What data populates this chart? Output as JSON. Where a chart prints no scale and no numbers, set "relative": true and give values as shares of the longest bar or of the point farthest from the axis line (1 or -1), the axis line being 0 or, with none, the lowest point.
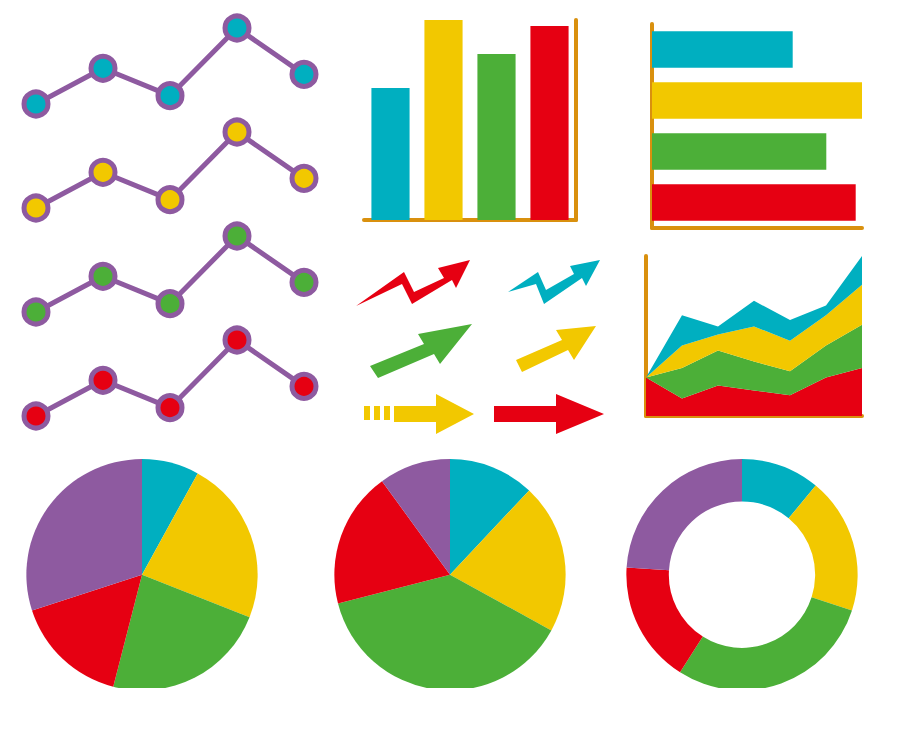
{
  "chart_data": [
    {
      "type": "line",
      "relative": true,
      "categories": [
        null,
        null,
        null,
        null,
        null
      ],
      "marker": "circle",
      "series": [
        {
          "color": "#8e5aa0",
          "colors": [
            "#00afc0",
            "#00afc0",
            "#00afc0",
            "#00afc0",
            "#00afc0"
          ],
          "values": [
            0,
            0.47,
            0.11,
            1,
            0.39
          ]
        }
      ]
    },
    {
      "type": "line",
      "relative": true,
      "categories": [
        null,
        null,
        null,
        null,
        null
      ],
      "marker": "circle",
      "series": [
        {
          "color": "#8e5aa0",
          "colors": [
            "#f2c800",
            "#f2c800",
            "#f2c800",
            "#f2c800",
            "#f2c800"
          ],
          "values": [
            0,
            0.47,
            0.11,
            1,
            0.39
          ]
        }
      ]
    },
    {
      "type": "line",
      "relative": true,
      "categories": [
        null,
        null,
        null,
        null,
        null
      ],
      "marker": "circle",
      "series": [
        {
          "color": "#8e5aa0",
          "colors": [
            "#4caf38",
            "#4caf38",
            "#4caf38",
            "#4caf38",
            "#4caf38"
          ],
          "values": [
            0,
            0.47,
            0.11,
            1,
            0.39
          ]
        }
      ]
    },
    {
      "type": "line",
      "relative": true,
      "categories": [
        null,
        null,
        null,
        null,
        null
      ],
      "marker": "circle",
      "series": [
        {
          "color": "#8e5aa0",
          "colors": [
            "#e60012",
            "#e60012",
            "#e60012",
            "#e60012",
            "#e60012"
          ],
          "values": [
            0,
            0.47,
            0.11,
            1,
            0.39
          ]
        }
      ]
    },
    {
      "type": "bar",
      "relative": true,
      "categories": [
        null,
        null,
        null,
        null
      ],
      "values": [
        0.66,
        1,
        0.83,
        0.97
      ],
      "colors": [
        "#00afc0",
        "#f2c800",
        "#4caf38",
        "#e60012"
      ]
    },
    {
      "type": "bar",
      "relative": true,
      "orientation": "horizontal",
      "categories": [
        null,
        null,
        null,
        null
      ],
      "values": [
        0.67,
        1,
        0.83,
        0.97
      ],
      "colors": [
        "#00afc0",
        "#f2c800",
        "#4caf38",
        "#e60012"
      ]
    },
    {
      "type": "area",
      "relative": true,
      "stacked": true,
      "categories": [
        null,
        null,
        null,
        null,
        null,
        null,
        null
      ],
      "series": [
        {
          "color": "#e60012",
          "values": [
            0.24,
            0.11,
            0.19,
            0.16,
            0.13,
            0.24,
            0.3
          ]
        },
        {
          "color": "#4caf38",
          "values": [
            0,
            0.19,
            0.22,
            0.18,
            0.15,
            0.2,
            0.27
          ]
        },
        {
          "color": "#f2c800",
          "values": [
            0,
            0.14,
            0.1,
            0.22,
            0.19,
            0.19,
            0.25
          ]
        },
        {
          "color": "#00afc0",
          "values": [
            0,
            0.19,
            0.05,
            0.16,
            0.13,
            0.06,
            0.18
          ]
        }
      ]
    },
    {
      "type": "pie",
      "categories": [
        null,
        null,
        null,
        null,
        null
      ],
      "values": [
        8,
        23,
        23,
        16,
        30
      ],
      "colors": [
        "#00afc0",
        "#f2c800",
        "#4caf38",
        "#e60012",
        "#8e5aa0"
      ]
    },
    {
      "type": "pie",
      "categories": [
        null,
        null,
        null,
        null,
        null
      ],
      "values": [
        12,
        21,
        38,
        19,
        10
      ],
      "colors": [
        "#00afc0",
        "#f2c800",
        "#4caf38",
        "#e60012",
        "#8e5aa0"
      ]
    },
    {
      "type": "donut",
      "categories": [
        null,
        null,
        null,
        null,
        null
      ],
      "values": [
        11,
        19,
        29,
        17,
        24
      ],
      "colors": [
        "#00afc0",
        "#f2c800",
        "#4caf38",
        "#e60012",
        "#8e5aa0"
      ]
    }
  ]
}
